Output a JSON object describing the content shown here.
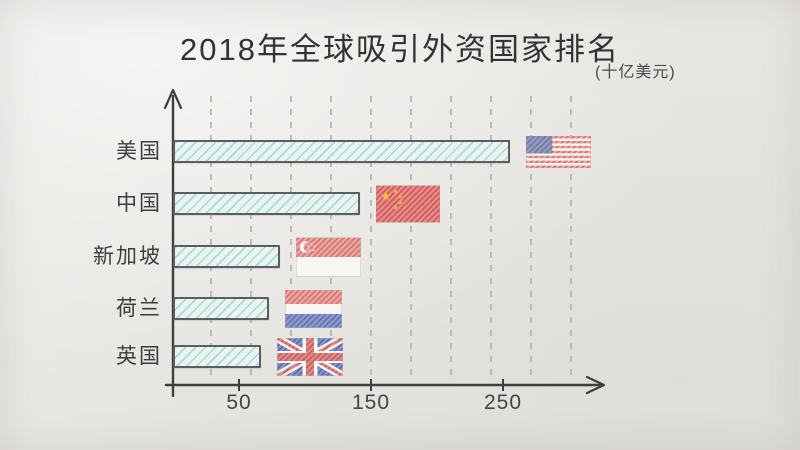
{
  "title": "2018年全球吸引外资国家排名",
  "unit_label": "(十亿美元)",
  "chart_data": {
    "type": "bar",
    "orientation": "horizontal",
    "title": "2018年全球吸引外资国家排名",
    "unit": "十亿美元",
    "categories": [
      "美国",
      "中国",
      "新加坡",
      "荷兰",
      "英国"
    ],
    "values": [
      252,
      139,
      78,
      70,
      64
    ],
    "flag_icons": [
      "usa-flag",
      "china-flag",
      "singapore-flag",
      "netherlands-flag",
      "uk-flag"
    ],
    "xticks": [
      50,
      150,
      250
    ],
    "xlim": [
      0,
      330
    ],
    "xlabel": "",
    "ylabel": "",
    "grid": "vertical-dashed",
    "legend": "none",
    "style": "hand-drawn"
  },
  "colors": {
    "background": "#e9e7e3",
    "bar_fill": "#e7f4f1",
    "bar_hatch": "#7cc1b9",
    "bar_border": "#5d5d5d",
    "axis": "#3e3e3e",
    "gridline": "#bcbab6",
    "text": "#3a3a3a",
    "flag_red": "#d3706b",
    "flag_blue": "#6f74a6",
    "flag_yellow": "#f0c23c"
  }
}
